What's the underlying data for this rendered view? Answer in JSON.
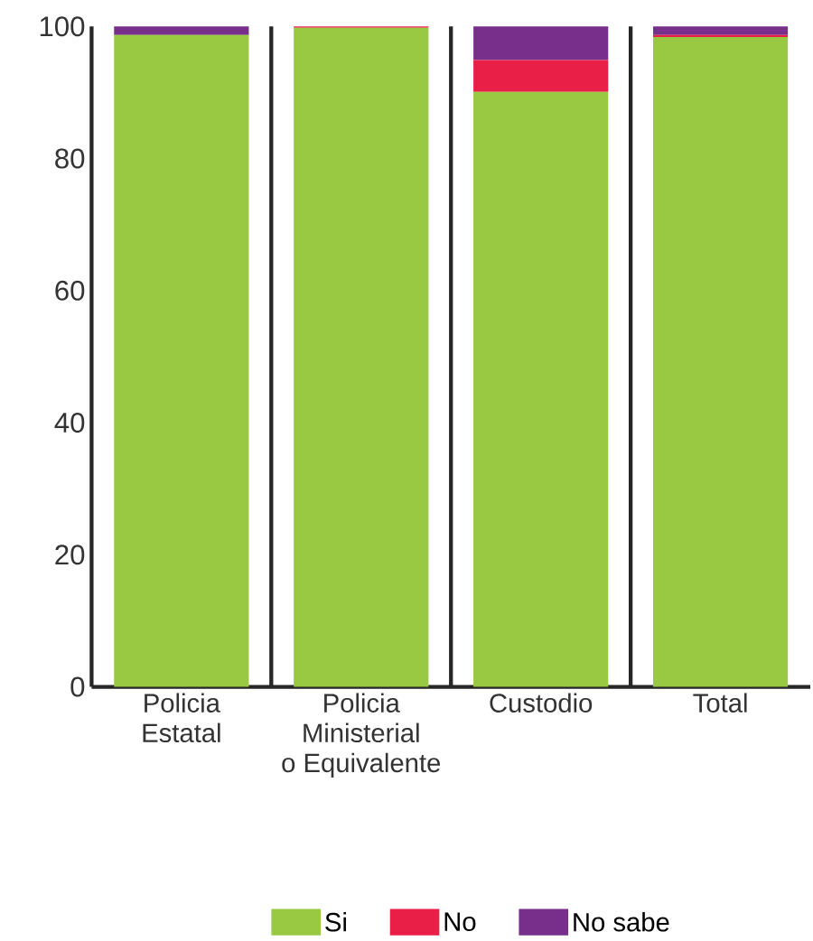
{
  "chart_data": {
    "type": "bar",
    "stacked": true,
    "categories": [
      "Policia\nEstatal",
      "Policia\nMinisterial\no Equivalente",
      "Custodio",
      "Total"
    ],
    "series": [
      {
        "name": "Si",
        "color": "#99c842",
        "values": [
          98.7,
          99.8,
          90.1,
          98.4
        ]
      },
      {
        "name": "No",
        "color": "#ea1f48",
        "values": [
          0,
          0.2,
          4.8,
          0.3
        ]
      },
      {
        "name": "No sabe",
        "color": "#782f8c",
        "values": [
          1.3,
          0,
          5.1,
          1.3
        ]
      }
    ],
    "ylim": [
      0,
      100
    ],
    "yticks": [
      0,
      20,
      40,
      60,
      80,
      100
    ],
    "grid": false,
    "legend": "bottom"
  }
}
